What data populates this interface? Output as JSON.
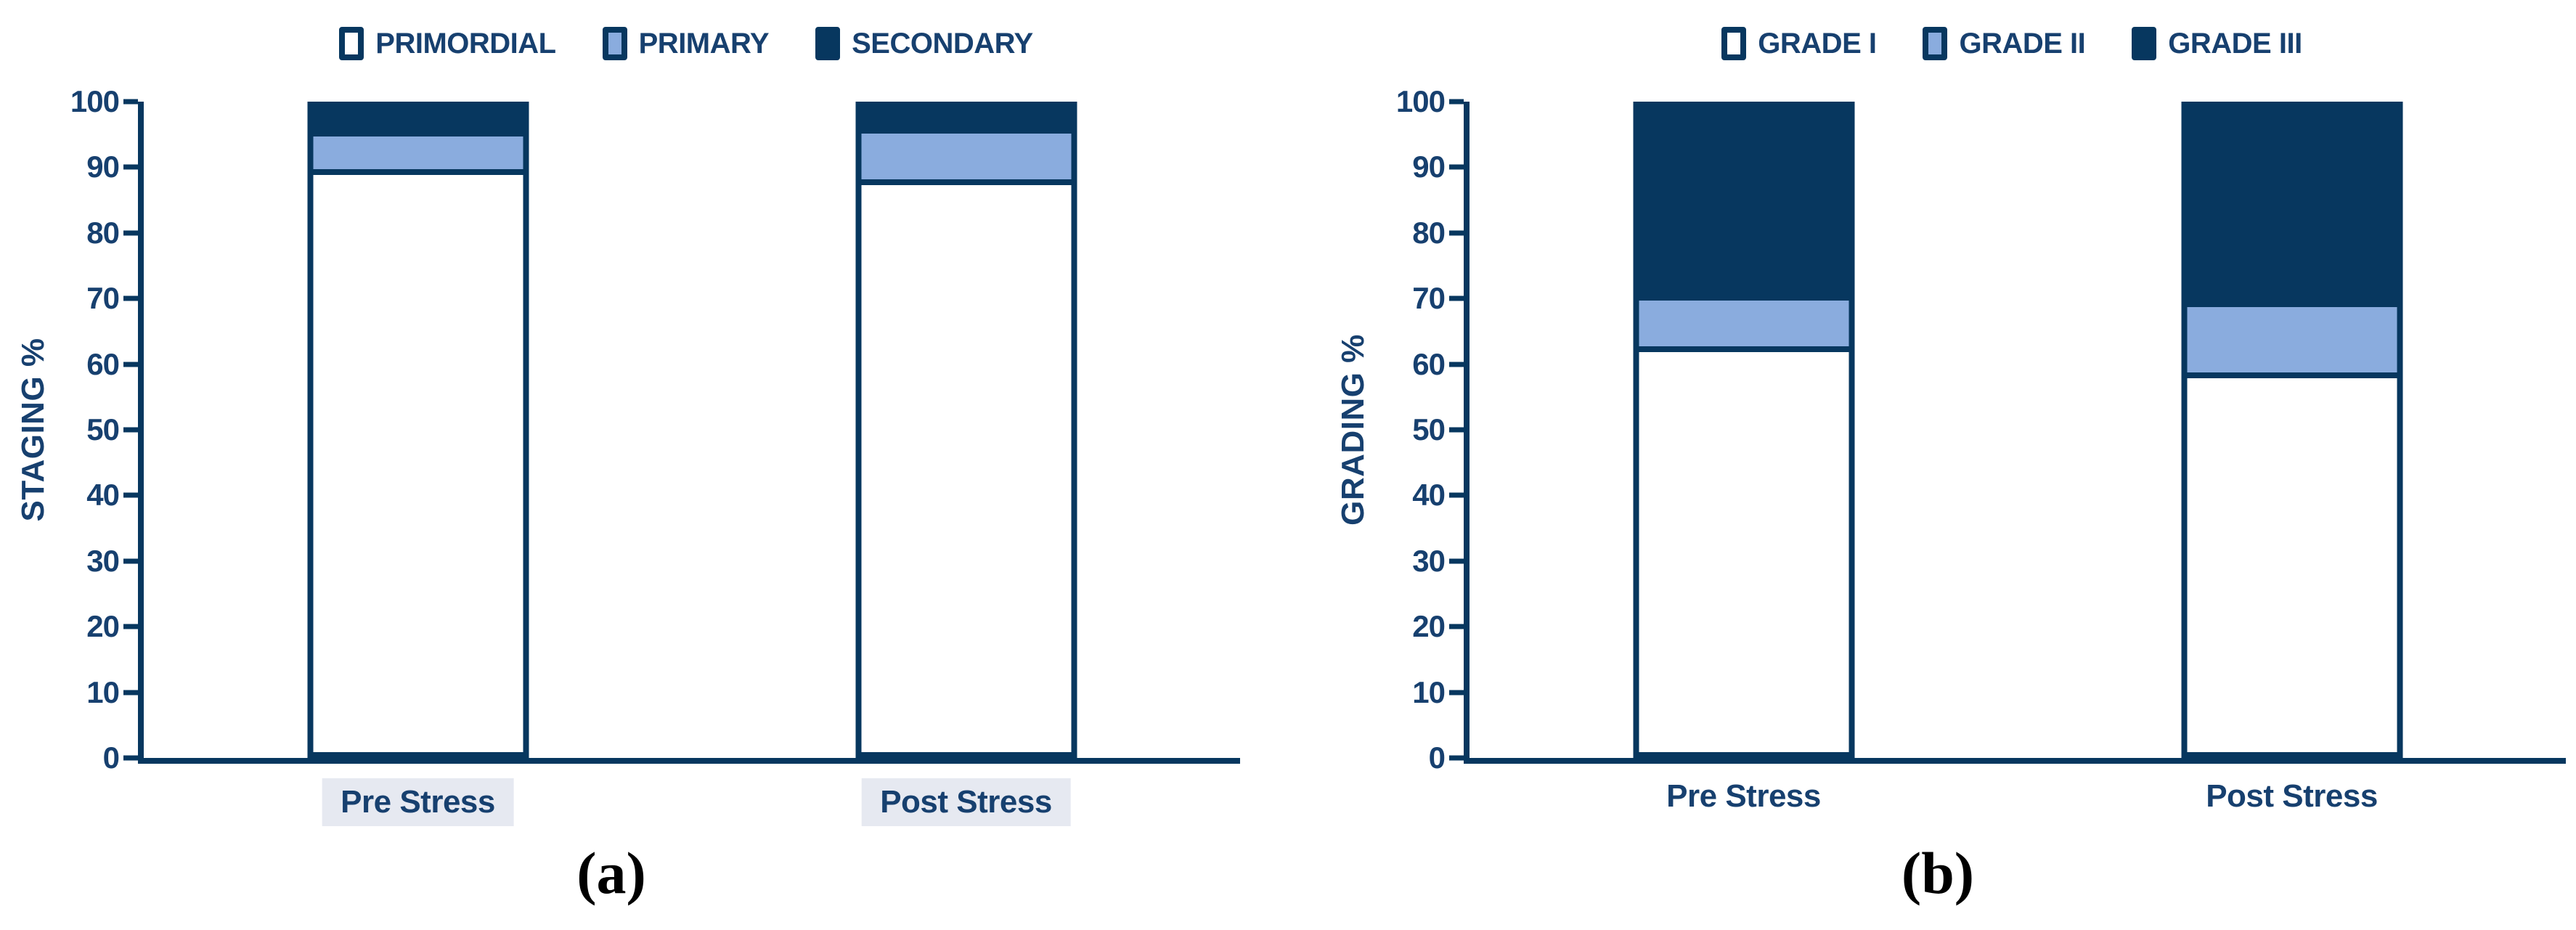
{
  "page": {
    "background": "#FFFFFF"
  },
  "colors": {
    "navy": "#07375F",
    "light_blue": "#8AACDE",
    "white": "#FFFFFF",
    "text": "#17406F",
    "xlabel_highlight_bg": "#E6E9F1",
    "caption_color": "#000000"
  },
  "chart_data": [
    {
      "id": "a",
      "type": "bar",
      "stacked": true,
      "title": "",
      "ylabel": "STAGING %",
      "xlabel": "",
      "ylim": [
        0,
        100
      ],
      "yticks": [
        0,
        10,
        20,
        30,
        40,
        50,
        60,
        70,
        80,
        90,
        100
      ],
      "grid": false,
      "legend_position": "top",
      "categories": [
        "Pre Stress",
        "Post Stress"
      ],
      "series": [
        {
          "name": "PRIMORDIAL",
          "fill": "white",
          "values": [
            89.5,
            88
          ]
        },
        {
          "name": "PRIMARY",
          "fill": "light_blue",
          "values": [
            6,
            8
          ]
        },
        {
          "name": "SECONDARY",
          "fill": "navy",
          "values": [
            4.5,
            4
          ]
        }
      ],
      "x_label_highlighted": true,
      "caption": "(a)"
    },
    {
      "id": "b",
      "type": "bar",
      "stacked": true,
      "title": "",
      "ylabel": "GRADING %",
      "xlabel": "",
      "ylim": [
        0,
        100
      ],
      "yticks": [
        0,
        10,
        20,
        30,
        40,
        50,
        60,
        70,
        80,
        90,
        100
      ],
      "grid": false,
      "legend_position": "top",
      "categories": [
        "Pre Stress",
        "Post Stress"
      ],
      "series": [
        {
          "name": "GRADE I",
          "fill": "white",
          "values": [
            62,
            58
          ]
        },
        {
          "name": "GRADE II",
          "fill": "light_blue",
          "values": [
            8,
            11
          ]
        },
        {
          "name": "GRADE III",
          "fill": "navy",
          "values": [
            30,
            31
          ]
        }
      ],
      "x_label_highlighted": false,
      "caption": "(b)"
    }
  ]
}
